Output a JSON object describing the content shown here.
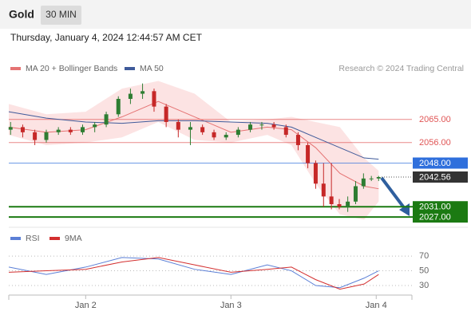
{
  "chart_data": {
    "type": "candlestick",
    "title": "Gold",
    "timeframe": "30 MIN",
    "subtitle": "Thursday, January 4, 2024 12:44:57 AM CET",
    "credit": "Research © 2024 Trading Central",
    "up_color": "#2e7d32",
    "down_color": "#c62828",
    "x": [
      11.6,
      13.6,
      15.6,
      17.5,
      19.5,
      21.5,
      23.5,
      25.5,
      27.4,
      29.4,
      31.4,
      33.4,
      35.3,
      37.3,
      39.3,
      41.3,
      43.3,
      45.2,
      47.2,
      49.2,
      51.2,
      53.1,
      55.1,
      57.1,
      59.1,
      60.7,
      62.0,
      63.3,
      64.6,
      65.9,
      67.3,
      68.6,
      69.9,
      71.2,
      72.4
    ],
    "open": [
      2061,
      2062,
      2060,
      2057,
      2060,
      2061,
      2060,
      2062,
      2063,
      2067,
      2073,
      2075,
      2076,
      2070,
      2064,
      2061,
      2062,
      2060,
      2058,
      2059,
      2061,
      2063,
      2063,
      2062,
      2059,
      2055,
      2048,
      2040,
      2035,
      2032,
      2031,
      2033,
      2039,
      2042,
      2042
    ],
    "high": [
      2064,
      2063,
      2061,
      2061,
      2062,
      2062,
      2063,
      2064,
      2068,
      2074,
      2077,
      2079,
      2077,
      2071,
      2065,
      2064,
      2063,
      2061,
      2060,
      2062,
      2064,
      2064,
      2064,
      2063,
      2060,
      2056,
      2049,
      2048,
      2048,
      2034,
      2035,
      2041,
      2044,
      2043,
      2043
    ],
    "low": [
      2059,
      2058,
      2055,
      2056,
      2059,
      2059,
      2059,
      2060,
      2062,
      2066,
      2071,
      2073,
      2068,
      2062,
      2058,
      2055,
      2059,
      2057,
      2057,
      2058,
      2060,
      2061,
      2061,
      2058,
      2053,
      2046,
      2038,
      2031,
      2030,
      2030,
      2029,
      2032,
      2038,
      2041,
      2041
    ],
    "close": [
      2062,
      2060,
      2057,
      2060,
      2061,
      2060,
      2062,
      2063,
      2067,
      2073,
      2075,
      2076,
      2070,
      2064,
      2061,
      2062,
      2060,
      2058,
      2059,
      2061,
      2063,
      2063,
      2062,
      2059,
      2055,
      2048,
      2040,
      2035,
      2032,
      2031,
      2033,
      2039,
      2042,
      2042,
      2042.56
    ],
    "xlim": [
      11.3,
      77.9
    ],
    "ylim": [
      2023,
      2082
    ],
    "xticks": [
      {
        "value": 24,
        "label": "Jan 2"
      },
      {
        "value": 48,
        "label": "Jan 3"
      },
      {
        "value": 72,
        "label": "Jan 4"
      }
    ],
    "series": [
      {
        "name": "MA 20 + Bollinger Bands",
        "color": "#e57373",
        "x": [
          11.3,
          17.5,
          24,
          30,
          36,
          42,
          48,
          54,
          58,
          62,
          66,
          70,
          72.4
        ],
        "values": [
          2062,
          2060,
          2061,
          2066,
          2072,
          2066,
          2060,
          2062,
          2061,
          2054,
          2044,
          2039,
          2038
        ],
        "upper": [
          2071,
          2067,
          2068,
          2077,
          2080,
          2075,
          2064,
          2065,
          2066,
          2064,
          2062,
          2050,
          2045
        ],
        "lower": [
          2059,
          2055,
          2056,
          2058,
          2064,
          2057,
          2056,
          2059,
          2055,
          2040,
          2028,
          2026,
          2033
        ]
      },
      {
        "name": "MA 50",
        "color": "#3f5a9a",
        "x": [
          11.3,
          17.5,
          24,
          30,
          36,
          42,
          48,
          54,
          58,
          62,
          66,
          70,
          72.4
        ],
        "values": [
          2068,
          2065.5,
          2064,
          2063.5,
          2064.5,
          2064.5,
          2064,
          2063.5,
          2062,
          2058,
          2054,
          2050,
          2049.5
        ]
      }
    ],
    "levels": [
      {
        "value": 2065,
        "label": "2065.00",
        "color": "#e05555",
        "boxed": false
      },
      {
        "value": 2056,
        "label": "2056.00",
        "color": "#e05555",
        "boxed": false
      },
      {
        "value": 2048,
        "label": "2048.00",
        "color": "#2f6fdc",
        "boxed": true
      },
      {
        "value": 2042.56,
        "label": "2042.56",
        "color": "#333333",
        "boxed": true
      },
      {
        "value": 2031,
        "label": "2031.00",
        "color": "#1b7a12",
        "boxed": true
      },
      {
        "value": 2027,
        "label": "2027.00",
        "color": "#1b7a12",
        "boxed": true
      }
    ],
    "rsi": {
      "ylim": [
        17,
        82
      ],
      "yticks": [
        70,
        50,
        30
      ],
      "series": [
        {
          "name": "RSI",
          "color": "#5b7fd6",
          "x": [
            11.3,
            17.5,
            24,
            30,
            36,
            42,
            48,
            54,
            58,
            62,
            66,
            70,
            72.4
          ],
          "values": [
            55,
            45,
            55,
            68,
            66,
            52,
            45,
            58,
            50,
            30,
            27,
            40,
            50
          ]
        },
        {
          "name": "9MA",
          "color": "#d32f2f",
          "x": [
            11.3,
            17.5,
            24,
            30,
            36,
            42,
            48,
            54,
            58,
            62,
            66,
            70,
            72.4
          ],
          "values": [
            48,
            50,
            52,
            62,
            68,
            58,
            48,
            52,
            55,
            38,
            25,
            32,
            45
          ]
        }
      ]
    }
  }
}
